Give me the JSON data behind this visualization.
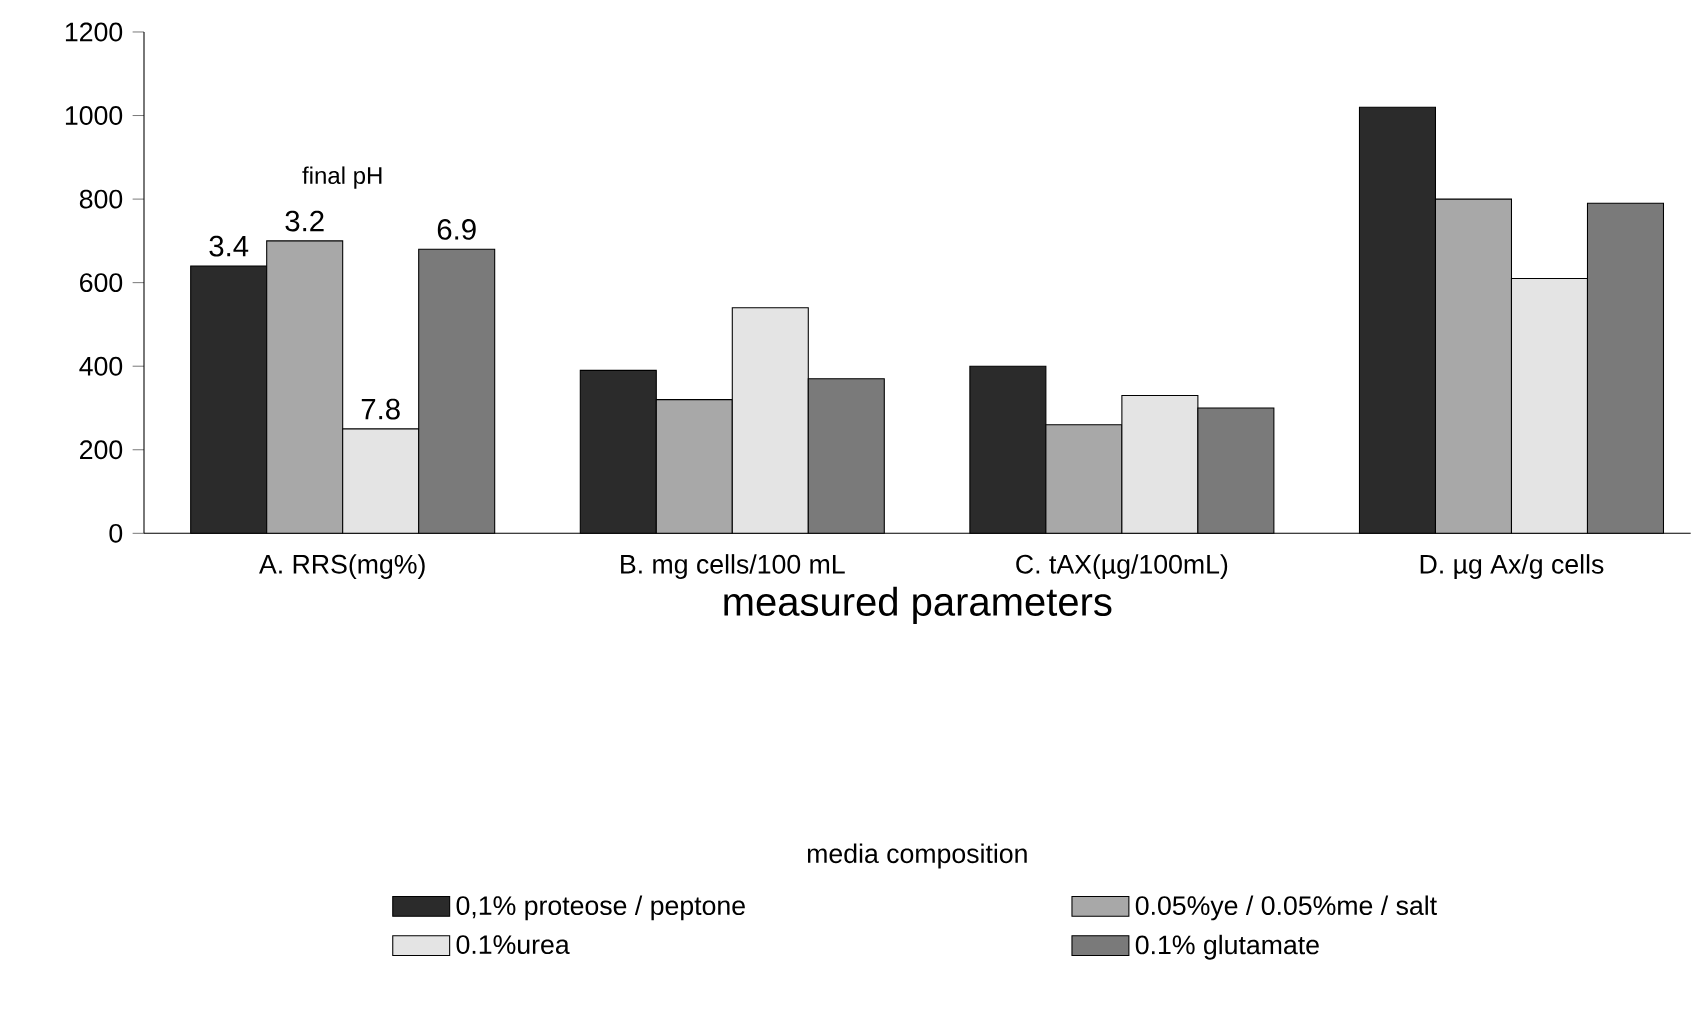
{
  "chart_data": {
    "type": "bar",
    "xlabel": "measured parameters",
    "legend_title": "media composition",
    "categories": [
      "A. RRS(mg%)",
      "B. mg cells/100 mL",
      "C. tAX(µg/100mL)",
      "D. µg Ax/g cells"
    ],
    "series": [
      {
        "name": "0,1% proteose / peptone",
        "color": "#2b2b2b",
        "values": [
          640,
          390,
          400,
          1020
        ]
      },
      {
        "name": "0.05%ye / 0.05%me / salt",
        "color": "#a8a8a8",
        "values": [
          700,
          320,
          260,
          800
        ]
      },
      {
        "name": "0.1%urea",
        "color": "#e4e4e4",
        "values": [
          250,
          540,
          330,
          610
        ]
      },
      {
        "name": "0.1% glutamate",
        "color": "#7a7a7a",
        "values": [
          680,
          370,
          300,
          790
        ]
      }
    ],
    "ylim": [
      0,
      1200
    ],
    "yticks": [
      0,
      200,
      400,
      600,
      800,
      1000,
      1200
    ],
    "grid": false,
    "legend": "bottom",
    "annotations": [
      "final pH",
      "3.4",
      "3.2",
      "7.8",
      "6.9"
    ]
  }
}
